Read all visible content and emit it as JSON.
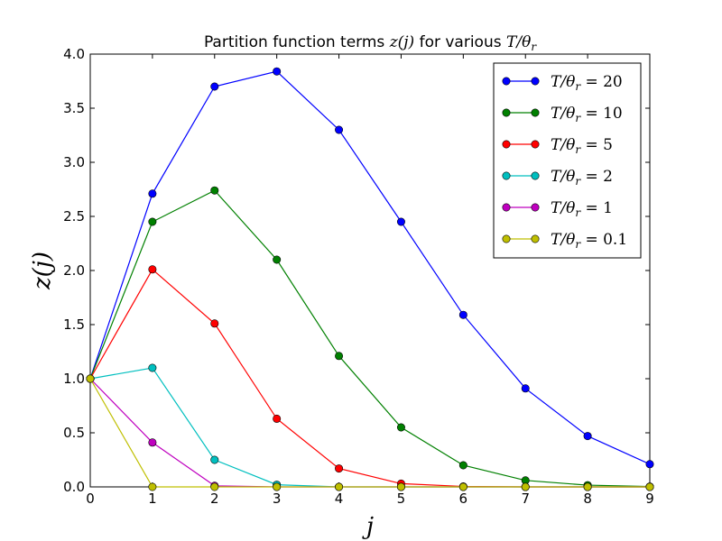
{
  "chart_data": {
    "type": "line",
    "title_prefix": "Partition function terms ",
    "title_math_1": "z(j)",
    "title_middle": " for various ",
    "title_math_2": "T/θ",
    "title_math_2_sub": "r",
    "xlabel": "j",
    "ylabel": "z(j)",
    "xlim": [
      0,
      9
    ],
    "ylim": [
      0,
      4.0
    ],
    "x_ticks": [
      0,
      1,
      2,
      3,
      4,
      5,
      6,
      7,
      8,
      9
    ],
    "x_tick_labels": [
      "0",
      "1",
      "2",
      "3",
      "4",
      "5",
      "6",
      "7",
      "8",
      "9"
    ],
    "y_ticks": [
      0,
      0.5,
      1.0,
      1.5,
      2.0,
      2.5,
      3.0,
      3.5,
      4.0
    ],
    "y_tick_labels": [
      "0.0",
      "0.5",
      "1.0",
      "1.5",
      "2.0",
      "2.5",
      "3.0",
      "3.5",
      "4.0"
    ],
    "grid": false,
    "legend_position": "top-right",
    "x": [
      0,
      1,
      2,
      3,
      4,
      5,
      6,
      7,
      8,
      9
    ],
    "series": [
      {
        "name": "T/θ_r = 20",
        "label_main": "T/θ",
        "label_sub": "r",
        "label_value": " = 20",
        "color": "#0000ff",
        "values": [
          1.0,
          2.71,
          3.7,
          3.84,
          3.3,
          2.45,
          1.59,
          0.91,
          0.47,
          0.21
        ]
      },
      {
        "name": "T/θ_r = 10",
        "label_main": "T/θ",
        "label_sub": "r",
        "label_value": " = 10",
        "color": "#008000",
        "values": [
          1.0,
          2.45,
          2.74,
          2.1,
          1.21,
          0.55,
          0.2,
          0.06,
          0.016,
          0.003
        ]
      },
      {
        "name": "T/θ_r = 5",
        "label_main": "T/θ",
        "label_sub": "r",
        "label_value": " = 5",
        "color": "#ff0000",
        "values": [
          1.0,
          2.01,
          1.51,
          0.63,
          0.17,
          0.03,
          0.004,
          0.0003,
          0.0,
          0.0
        ]
      },
      {
        "name": "T/θ_r = 2",
        "label_main": "T/θ",
        "label_sub": "r",
        "label_value": " = 2",
        "color": "#00bfbf",
        "values": [
          1.0,
          1.1,
          0.25,
          0.02,
          0.0,
          0.0,
          0.0,
          0.0,
          0.0,
          0.0
        ]
      },
      {
        "name": "T/θ_r = 1",
        "label_main": "T/θ",
        "label_sub": "r",
        "label_value": " = 1",
        "color": "#bf00bf",
        "values": [
          1.0,
          0.41,
          0.01,
          0.0,
          0.0,
          0.0,
          0.0,
          0.0,
          0.0,
          0.0
        ]
      },
      {
        "name": "T/θ_r = 0.1",
        "label_main": "T/θ",
        "label_sub": "r",
        "label_value": " = 0.1",
        "color": "#bfbf00",
        "values": [
          1.0,
          0.0,
          0.0,
          0.0,
          0.0,
          0.0,
          0.0,
          0.0,
          0.0,
          0.0
        ]
      }
    ]
  }
}
